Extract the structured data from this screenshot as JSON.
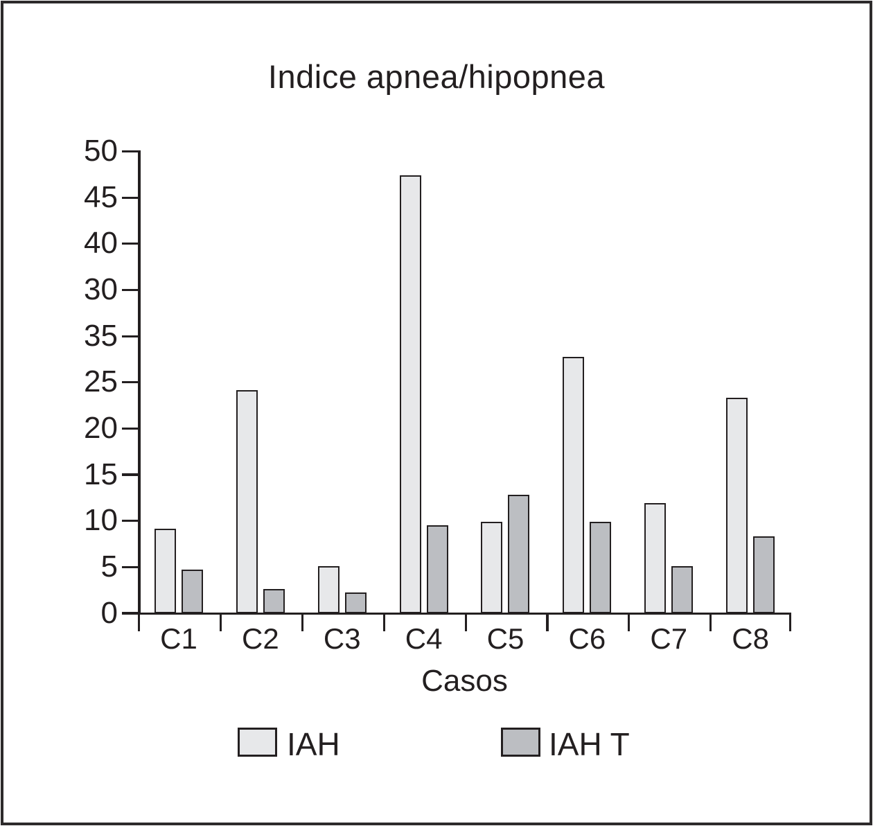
{
  "figure": {
    "background": "#ffffff",
    "frame_color": "#2d2a2b",
    "ink_color": "#231f20"
  },
  "chart_data": {
    "type": "bar",
    "title": "Indice apnea/hipopnea",
    "xlabel": "Casos",
    "ylabel": "",
    "categories": [
      "C1",
      "C2",
      "C3",
      "C4",
      "C5",
      "C6",
      "C7",
      "C8"
    ],
    "series": [
      {
        "name": "IAH",
        "color": "#e7e8ea",
        "values": [
          9,
          24,
          5,
          47.2,
          9.8,
          27.6,
          11.8,
          23.2
        ]
      },
      {
        "name": "IAH T",
        "color": "#bcbec2",
        "values": [
          4.6,
          2.5,
          2.1,
          9.4,
          12.7,
          9.8,
          5,
          8.2
        ]
      }
    ],
    "ylim": [
      0,
      50
    ],
    "ytick_step": 5,
    "ytick_labels_top_to_bottom": [
      "50",
      "45",
      "40",
      "30",
      "35",
      "25",
      "20",
      "15",
      "10",
      "5",
      "0"
    ],
    "grid": false,
    "legend_position": "bottom"
  }
}
